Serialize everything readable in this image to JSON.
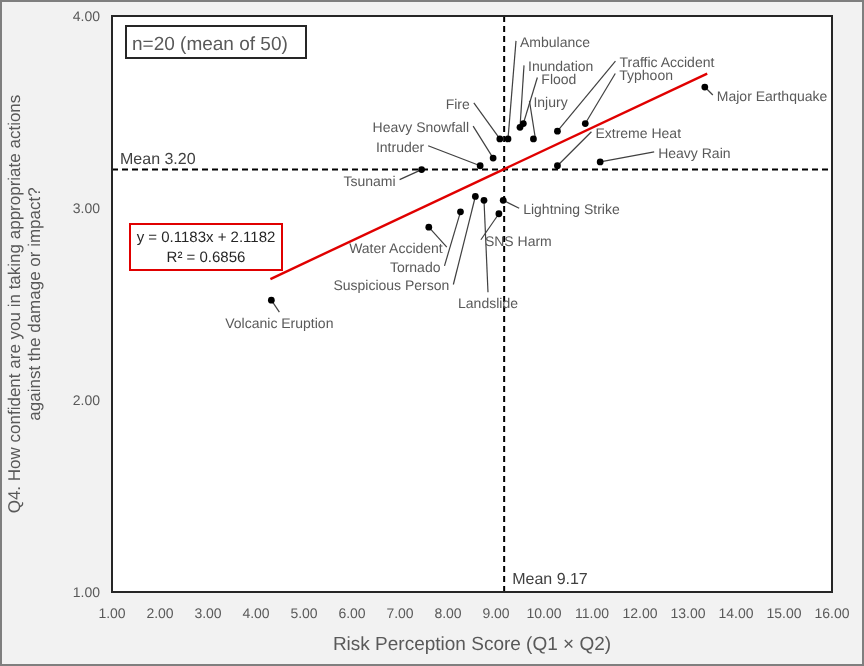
{
  "chart_data": {
    "type": "scatter",
    "xlabel": "Risk Perception Score (Q1 × Q2)",
    "ylabel": "Q4. How confident are you in taking appropriate actions against the damage or impact?",
    "xlim": [
      1,
      16
    ],
    "ylim": [
      1,
      4
    ],
    "xticks": [
      {
        "value": 1,
        "label": "1.00"
      },
      {
        "value": 2,
        "label": "2.00"
      },
      {
        "value": 3,
        "label": "3.00"
      },
      {
        "value": 4,
        "label": "4.00"
      },
      {
        "value": 5,
        "label": "5.00"
      },
      {
        "value": 6,
        "label": "6.00"
      },
      {
        "value": 7,
        "label": "7.00"
      },
      {
        "value": 8,
        "label": "8.00"
      },
      {
        "value": 9,
        "label": "9.00"
      },
      {
        "value": 10,
        "label": "10.00"
      },
      {
        "value": 11,
        "label": "11.00"
      },
      {
        "value": 12,
        "label": "12.00"
      },
      {
        "value": 13,
        "label": "13.00"
      },
      {
        "value": 14,
        "label": "14.00"
      },
      {
        "value": 15,
        "label": "15.00"
      },
      {
        "value": 16,
        "label": "16.00"
      }
    ],
    "yticks": [
      {
        "value": 1,
        "label": "1.00"
      },
      {
        "value": 2,
        "label": "2.00"
      },
      {
        "value": 3,
        "label": "3.00"
      },
      {
        "value": 4,
        "label": "4.00"
      }
    ],
    "grid": false,
    "marker": "circle",
    "series": [
      {
        "color": "#000000",
        "x": [
          9.08,
          9.25,
          9.5,
          9.57,
          9.78,
          10.28,
          10.86,
          13.35,
          8.94,
          8.67,
          10.28,
          11.17,
          7.45,
          9.15,
          9.06,
          8.75,
          8.57,
          8.26,
          7.6,
          4.32
        ],
        "values": [
          3.36,
          3.36,
          3.42,
          3.44,
          3.36,
          3.4,
          3.44,
          3.63,
          3.26,
          3.22,
          3.22,
          3.24,
          3.2,
          3.04,
          2.97,
          3.04,
          3.06,
          2.98,
          2.9,
          2.52
        ]
      },
      {
        "type": "line",
        "marker": "none",
        "color": "#e00000",
        "x": [
          4.3,
          13.4
        ],
        "values": [
          2.63,
          3.7
        ]
      }
    ],
    "ref_lines": [
      {
        "axis": "y",
        "value": 3.2,
        "label": "Mean 3.20",
        "color": "#000000",
        "line_style": "dashed"
      },
      {
        "axis": "x",
        "value": 9.17,
        "label": "Mean 9.17",
        "color": "#000000",
        "line_style": "dashed"
      }
    ],
    "annotations": [
      {
        "text": "Fire",
        "x": 9.08,
        "y": 3.36
      },
      {
        "text": "Ambulance",
        "x": 9.25,
        "y": 3.36
      },
      {
        "text": "Inundation",
        "x": 9.5,
        "y": 3.42
      },
      {
        "text": "Flood",
        "x": 9.57,
        "y": 3.44
      },
      {
        "text": "Injury",
        "x": 9.78,
        "y": 3.36
      },
      {
        "text": "Traffic Accident",
        "x": 10.28,
        "y": 3.4
      },
      {
        "text": "Typhoon",
        "x": 10.86,
        "y": 3.44
      },
      {
        "text": "Major Earthquake",
        "x": 13.35,
        "y": 3.63
      },
      {
        "text": "Heavy Snowfall",
        "x": 8.94,
        "y": 3.26
      },
      {
        "text": "Intruder",
        "x": 8.67,
        "y": 3.22
      },
      {
        "text": "Extreme Heat",
        "x": 10.28,
        "y": 3.22
      },
      {
        "text": "Heavy Rain",
        "x": 11.17,
        "y": 3.24
      },
      {
        "text": "Tsunami",
        "x": 7.45,
        "y": 3.2
      },
      {
        "text": "Lightning Strike",
        "x": 9.15,
        "y": 3.04
      },
      {
        "text": "SNS Harm",
        "x": 9.06,
        "y": 2.97
      },
      {
        "text": "Landslide",
        "x": 8.75,
        "y": 3.04
      },
      {
        "text": "Suspicious Person",
        "x": 8.57,
        "y": 3.06
      },
      {
        "text": "Tornado",
        "x": 8.26,
        "y": 2.98
      },
      {
        "text": "Water Accident",
        "x": 7.6,
        "y": 2.9
      },
      {
        "text": "Volcanic Eruption",
        "x": 4.32,
        "y": 2.52
      },
      "n=20 (mean of 50)",
      "y = 0.1183x + 2.1182",
      "R² = 0.6856"
    ]
  }
}
